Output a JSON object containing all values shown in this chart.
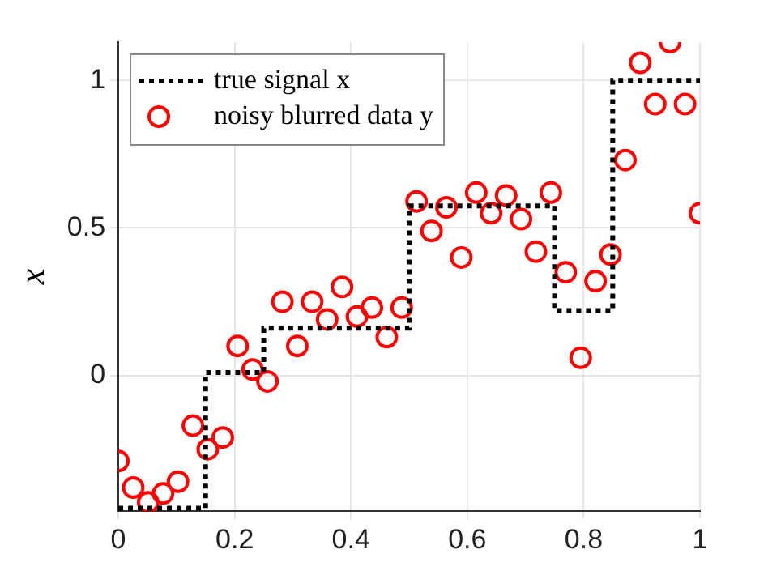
{
  "chart_data": {
    "type": "scatter",
    "ylabel": "x",
    "xlim": [
      0,
      1
    ],
    "ylim": [
      -0.46,
      1.13
    ],
    "xticks": [
      0,
      0.2,
      0.4,
      0.6,
      0.8,
      1
    ],
    "yticks": [
      0,
      0.5,
      1
    ],
    "grid": true,
    "legend": "top left",
    "series": [
      {
        "name": "true signal x",
        "type": "step",
        "color": "#000000",
        "marker": "none",
        "line_style": "dotted",
        "x": [
          0,
          0.15,
          0.25,
          0.5,
          0.75,
          0.85,
          1
        ],
        "values": [
          -0.45,
          0.01,
          0.16,
          0.575,
          0.22,
          1.0,
          1.0
        ]
      },
      {
        "name": "noisy blurred data y",
        "type": "scatter",
        "color": "#ff0000",
        "marker": "circle",
        "x": [
          0,
          0.0256,
          0.0513,
          0.0769,
          0.1026,
          0.1282,
          0.1538,
          0.1795,
          0.2051,
          0.2308,
          0.2564,
          0.2821,
          0.3077,
          0.3333,
          0.359,
          0.3846,
          0.4103,
          0.4359,
          0.4615,
          0.4872,
          0.5128,
          0.5385,
          0.5641,
          0.5897,
          0.6154,
          0.641,
          0.6667,
          0.6923,
          0.7179,
          0.7436,
          0.7692,
          0.7949,
          0.8205,
          0.8462,
          0.8718,
          0.8974,
          0.9231,
          0.9487,
          0.9744,
          1
        ],
        "values": [
          -0.29,
          -0.38,
          -0.43,
          -0.4,
          -0.36,
          -0.17,
          -0.25,
          -0.21,
          0.1,
          0.02,
          -0.02,
          0.25,
          0.1,
          0.25,
          0.19,
          0.3,
          0.2,
          0.23,
          0.13,
          0.23,
          0.59,
          0.49,
          0.57,
          0.4,
          0.62,
          0.55,
          0.61,
          0.53,
          0.42,
          0.62,
          0.35,
          0.06,
          0.32,
          0.41,
          0.73,
          1.06,
          0.92,
          1.13,
          0.92,
          0.55
        ]
      }
    ]
  }
}
